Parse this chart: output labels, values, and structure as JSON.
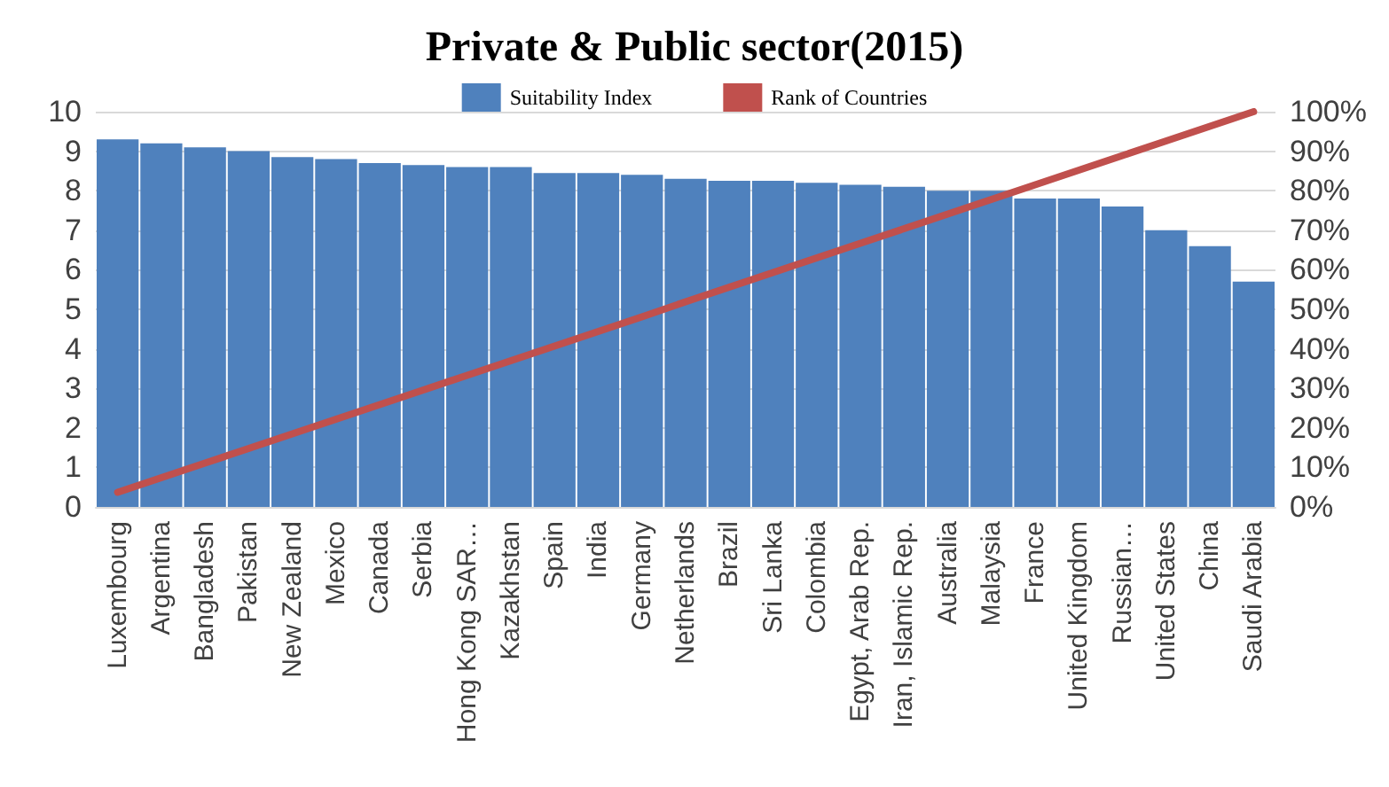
{
  "chart_data": {
    "type": "bar",
    "title": "Private & Public sector(2015)",
    "categories": [
      "Luxembourg",
      "Argentina",
      "Bangladesh",
      "Pakistan",
      "New Zealand",
      "Mexico",
      "Canada",
      "Serbia",
      "Hong Kong SAR…",
      "Kazakhstan",
      "Spain",
      "India",
      "Germany",
      "Netherlands",
      "Brazil",
      "Sri Lanka",
      "Colombia",
      "Egypt, Arab Rep.",
      "Iran, Islamic Rep.",
      "Australia",
      "Malaysia",
      "France",
      "United Kingdom",
      "Russian…",
      "United States",
      "China",
      "Saudi Arabia"
    ],
    "series": [
      {
        "name": "Suitability Index",
        "color": "#4f81bd",
        "values": [
          9.3,
          9.2,
          9.1,
          9.0,
          8.85,
          8.8,
          8.7,
          8.65,
          8.6,
          8.6,
          8.45,
          8.45,
          8.4,
          8.3,
          8.25,
          8.25,
          8.2,
          8.15,
          8.1,
          8.0,
          8.0,
          7.8,
          7.8,
          7.6,
          7.0,
          6.6,
          5.7
        ]
      },
      {
        "name": "Rank of Countries",
        "type": "line",
        "axis": "y2",
        "color": "#c0504d",
        "values": [
          3.7,
          7.4,
          11.1,
          14.8,
          18.5,
          22.2,
          25.9,
          29.6,
          33.3,
          37.0,
          40.7,
          44.4,
          48.1,
          51.9,
          55.6,
          59.3,
          63.0,
          66.7,
          70.4,
          74.1,
          77.8,
          81.5,
          85.2,
          88.9,
          92.6,
          96.3,
          100
        ]
      }
    ],
    "ylim": [
      0,
      10
    ],
    "yticks": [
      0,
      1,
      2,
      3,
      4,
      5,
      6,
      7,
      8,
      9,
      10
    ],
    "y2lim": [
      0,
      100
    ],
    "y2ticks": [
      {
        "value": 0,
        "label": "0%"
      },
      {
        "value": 10,
        "label": "10%"
      },
      {
        "value": 20,
        "label": "20%"
      },
      {
        "value": 30,
        "label": "30%"
      },
      {
        "value": 40,
        "label": "40%"
      },
      {
        "value": 50,
        "label": "50%"
      },
      {
        "value": 60,
        "label": "60%"
      },
      {
        "value": 70,
        "label": "70%"
      },
      {
        "value": 80,
        "label": "80%"
      },
      {
        "value": 90,
        "label": "90%"
      },
      {
        "value": 100,
        "label": "100%"
      }
    ],
    "grid": "y",
    "legend": "top",
    "marker": "none"
  }
}
